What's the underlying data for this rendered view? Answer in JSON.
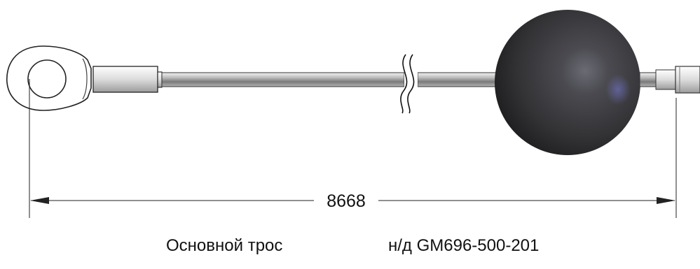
{
  "drawing": {
    "dimension": "8668",
    "caption_name": "Основной трос",
    "caption_code": "н/д GM696-500-201"
  },
  "colors": {
    "ball": "#3a3a3d",
    "steel": "#d9d9d9",
    "outline": "#222222"
  }
}
